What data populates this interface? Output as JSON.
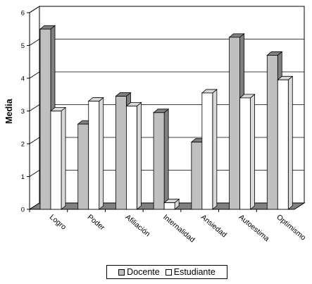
{
  "chart_data": {
    "type": "bar",
    "ylabel": "Media",
    "xlabel": "",
    "ylim": [
      0,
      6
    ],
    "yticks": [
      "0",
      "1",
      "2",
      "3",
      "4",
      "5",
      "6"
    ],
    "categories": [
      "Logro",
      "Poder",
      "Afiliación",
      "Internalidad",
      "Ansiedad",
      "Autoestima",
      "Optimismo"
    ],
    "series": [
      {
        "name": "Docente",
        "values": [
          5.5,
          2.6,
          3.45,
          2.95,
          2.05,
          5.25,
          4.7
        ]
      },
      {
        "name": "Estudiante",
        "values": [
          3.0,
          3.3,
          3.15,
          0.2,
          3.55,
          3.4,
          3.95
        ]
      }
    ],
    "grid": true,
    "legend_position": "bottom",
    "colors": {
      "Docente": "#c0c0c0",
      "Estudiante": "#ffffff",
      "side_docente": "#808080",
      "side_estudiante": "#d9d9d9",
      "floor": "#808080",
      "wall": "#ffffff"
    }
  }
}
